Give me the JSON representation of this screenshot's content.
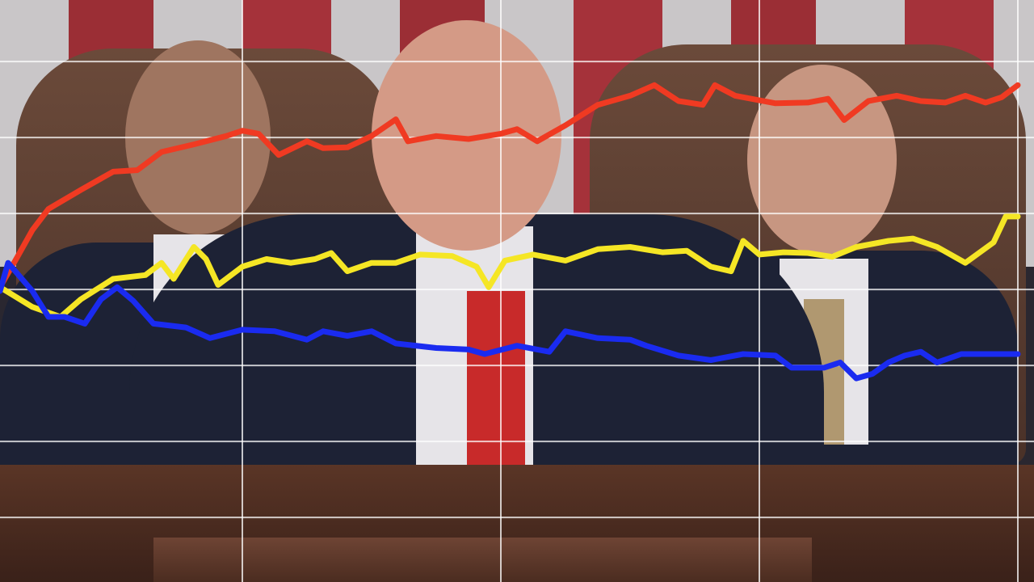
{
  "chart_data": {
    "type": "line",
    "title": "",
    "xlabel": "",
    "ylabel": "",
    "xlim": [
      0,
      128
    ],
    "ylim": [
      -0.85,
      6.81
    ],
    "grid": true,
    "grid_x": [
      30,
      62,
      94,
      126
    ],
    "grid_y": [
      0,
      1,
      2,
      3,
      4,
      5,
      6
    ],
    "legend": "none",
    "series": [
      {
        "color": "#f03a22",
        "x": [
          0,
          2,
          4,
          6,
          10,
          14,
          17,
          20,
          24,
          28,
          30,
          32,
          34.5,
          38,
          40,
          43,
          46,
          49,
          50.5,
          54,
          58,
          62,
          64,
          66.5,
          70,
          74,
          78,
          81,
          84,
          87,
          88.5,
          91,
          96,
          100,
          102.5,
          104.5,
          107.5,
          111,
          114,
          117,
          119.5,
          122,
          124,
          126
        ],
        "y": [
          3.03,
          3.4,
          3.78,
          4.06,
          4.31,
          4.55,
          4.57,
          4.81,
          4.91,
          5.02,
          5.09,
          5.05,
          4.77,
          4.95,
          4.86,
          4.87,
          5.02,
          5.24,
          4.95,
          5.02,
          4.98,
          5.05,
          5.11,
          4.95,
          5.16,
          5.43,
          5.55,
          5.69,
          5.48,
          5.43,
          5.69,
          5.55,
          5.45,
          5.46,
          5.51,
          5.23,
          5.48,
          5.55,
          5.48,
          5.46,
          5.55,
          5.46,
          5.53,
          5.69
        ]
      },
      {
        "color": "#f5e625",
        "x": [
          0,
          4,
          7.5,
          10,
          14,
          18,
          20,
          21.5,
          24,
          25.5,
          27,
          30,
          33,
          36,
          39,
          41,
          43,
          46,
          49,
          52,
          56,
          59,
          60.5,
          62.5,
          66,
          70,
          74,
          78,
          82,
          85,
          88,
          90.5,
          92,
          94,
          97,
          100,
          103,
          106,
          110,
          113,
          116,
          119.5,
          123,
          124.5,
          126
        ],
        "y": [
          3.03,
          2.77,
          2.64,
          2.87,
          3.14,
          3.19,
          3.35,
          3.14,
          3.56,
          3.4,
          3.06,
          3.3,
          3.4,
          3.35,
          3.4,
          3.48,
          3.24,
          3.35,
          3.35,
          3.46,
          3.44,
          3.3,
          3.03,
          3.38,
          3.46,
          3.38,
          3.53,
          3.56,
          3.49,
          3.51,
          3.3,
          3.24,
          3.64,
          3.46,
          3.49,
          3.48,
          3.43,
          3.56,
          3.64,
          3.67,
          3.56,
          3.35,
          3.62,
          3.96,
          3.96
        ]
      },
      {
        "color": "#1a2bf0",
        "x": [
          0,
          1,
          4,
          6,
          8,
          10.5,
          12.5,
          14.5,
          16.5,
          19,
          23,
          26,
          30,
          34,
          38,
          40,
          43,
          46,
          49,
          54,
          58,
          60,
          64,
          68,
          70,
          74,
          78,
          80,
          84,
          88,
          92,
          96,
          98,
          102,
          104,
          106,
          108,
          110,
          112,
          114,
          116,
          119,
          126
        ],
        "y": [
          2.98,
          3.35,
          2.98,
          2.64,
          2.64,
          2.55,
          2.87,
          3.03,
          2.85,
          2.55,
          2.5,
          2.36,
          2.47,
          2.45,
          2.34,
          2.45,
          2.39,
          2.45,
          2.29,
          2.23,
          2.21,
          2.15,
          2.26,
          2.18,
          2.45,
          2.36,
          2.34,
          2.26,
          2.13,
          2.07,
          2.15,
          2.13,
          1.97,
          1.97,
          2.04,
          1.83,
          1.89,
          2.04,
          2.13,
          2.18,
          2.04,
          2.15,
          2.15
        ]
      }
    ]
  }
}
